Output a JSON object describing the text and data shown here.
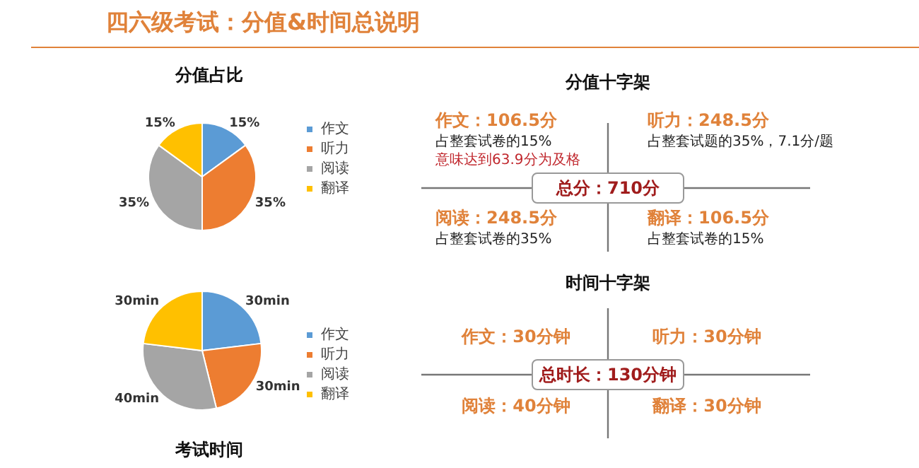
{
  "chart_data": [
    {
      "type": "other",
      "title": "四六级考试：分值&时间总说明"
    },
    {
      "type": "pie",
      "title": "分值占比",
      "categories": [
        "作文",
        "听力",
        "阅读",
        "翻译"
      ],
      "values": [
        15,
        35,
        35,
        15
      ],
      "value_labels": [
        "15%",
        "35%",
        "35%",
        "15%"
      ],
      "colors": [
        "#5b9bd5",
        "#ed7d31",
        "#a5a5a5",
        "#ffc000"
      ],
      "legend": "right"
    },
    {
      "type": "other",
      "title": "分值十字架",
      "annotations": [
        "作文：106.5分",
        "占整套试卷的15%",
        "意味达到63.9分为及格",
        "听力：248.5分",
        "占整套试题的35%，7.1分/题",
        "阅读：248.5分",
        "占整套试卷的35%",
        "翻译：106.5分",
        "占整套试卷的15%",
        "总分：710分"
      ]
    },
    {
      "type": "pie",
      "title": "考试时间",
      "categories": [
        "作文",
        "听力",
        "阅读",
        "翻译"
      ],
      "values": [
        30,
        30,
        40,
        30
      ],
      "value_labels": [
        "30min",
        "30min",
        "40min",
        "30min"
      ],
      "colors": [
        "#5b9bd5",
        "#ed7d31",
        "#a5a5a5",
        "#ffc000"
      ],
      "legend": "right"
    },
    {
      "type": "other",
      "title": "时间十字架",
      "annotations": [
        "作文：30分钟",
        "听力：30分钟",
        "阅读：40分钟",
        "翻译：30分钟",
        "总时长：130分钟"
      ]
    }
  ]
}
